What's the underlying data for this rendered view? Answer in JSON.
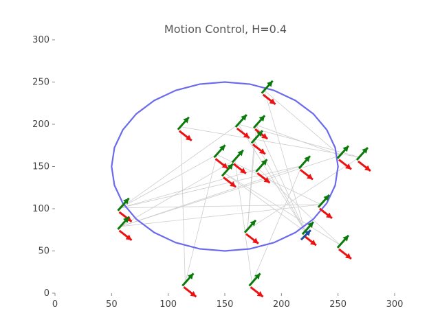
{
  "chart_data": {
    "type": "scatter",
    "title": "Motion Control, H=0.4",
    "xlabel": "",
    "ylabel": "",
    "xlim": [
      0,
      300
    ],
    "ylim": [
      0,
      300
    ],
    "x_ticks": [
      0,
      50,
      100,
      150,
      200,
      250,
      300
    ],
    "y_ticks": [
      0,
      50,
      100,
      150,
      200,
      250,
      300
    ],
    "grid": false,
    "legend": "none",
    "colors": {
      "boundary": "#6a6aee",
      "links": "#cccccc",
      "green_arrows": "#0a7a0a",
      "red_arrows": "#ee1111",
      "blue_arrow": "#1f4fa0"
    },
    "boundary": {
      "shape": "ellipse",
      "center": [
        150,
        150
      ],
      "rx": 100,
      "ry": 100,
      "segments": 28
    },
    "agents": [
      {
        "x": 185,
        "y": 240
      },
      {
        "x": 111,
        "y": 197
      },
      {
        "x": 162,
        "y": 200
      },
      {
        "x": 178,
        "y": 199
      },
      {
        "x": 176,
        "y": 181
      },
      {
        "x": 143,
        "y": 164
      },
      {
        "x": 159,
        "y": 158
      },
      {
        "x": 150,
        "y": 142
      },
      {
        "x": 180,
        "y": 147
      },
      {
        "x": 218,
        "y": 151
      },
      {
        "x": 252,
        "y": 163
      },
      {
        "x": 269,
        "y": 161
      },
      {
        "x": 235,
        "y": 105
      },
      {
        "x": 221,
        "y": 73
      },
      {
        "x": 252,
        "y": 57
      },
      {
        "x": 58,
        "y": 101
      },
      {
        "x": 58,
        "y": 79
      },
      {
        "x": 170,
        "y": 75
      },
      {
        "x": 115,
        "y": 12
      },
      {
        "x": 174,
        "y": 12
      }
    ],
    "blue_arrow_agent": 13,
    "links": [
      [
        0,
        10
      ],
      [
        1,
        18
      ],
      [
        1,
        11
      ],
      [
        2,
        13
      ],
      [
        2,
        15
      ],
      [
        3,
        13
      ],
      [
        3,
        10
      ],
      [
        4,
        17
      ],
      [
        5,
        15
      ],
      [
        5,
        12
      ],
      [
        6,
        19
      ],
      [
        6,
        16
      ],
      [
        7,
        13
      ],
      [
        8,
        15
      ],
      [
        8,
        14
      ],
      [
        9,
        15
      ],
      [
        10,
        16
      ],
      [
        11,
        17
      ],
      [
        12,
        16
      ],
      [
        13,
        4
      ],
      [
        14,
        7
      ],
      [
        15,
        12
      ],
      [
        17,
        3
      ],
      [
        18,
        5
      ],
      [
        19,
        9
      ],
      [
        0,
        13
      ],
      [
        9,
        16
      ],
      [
        2,
        11
      ]
    ]
  }
}
